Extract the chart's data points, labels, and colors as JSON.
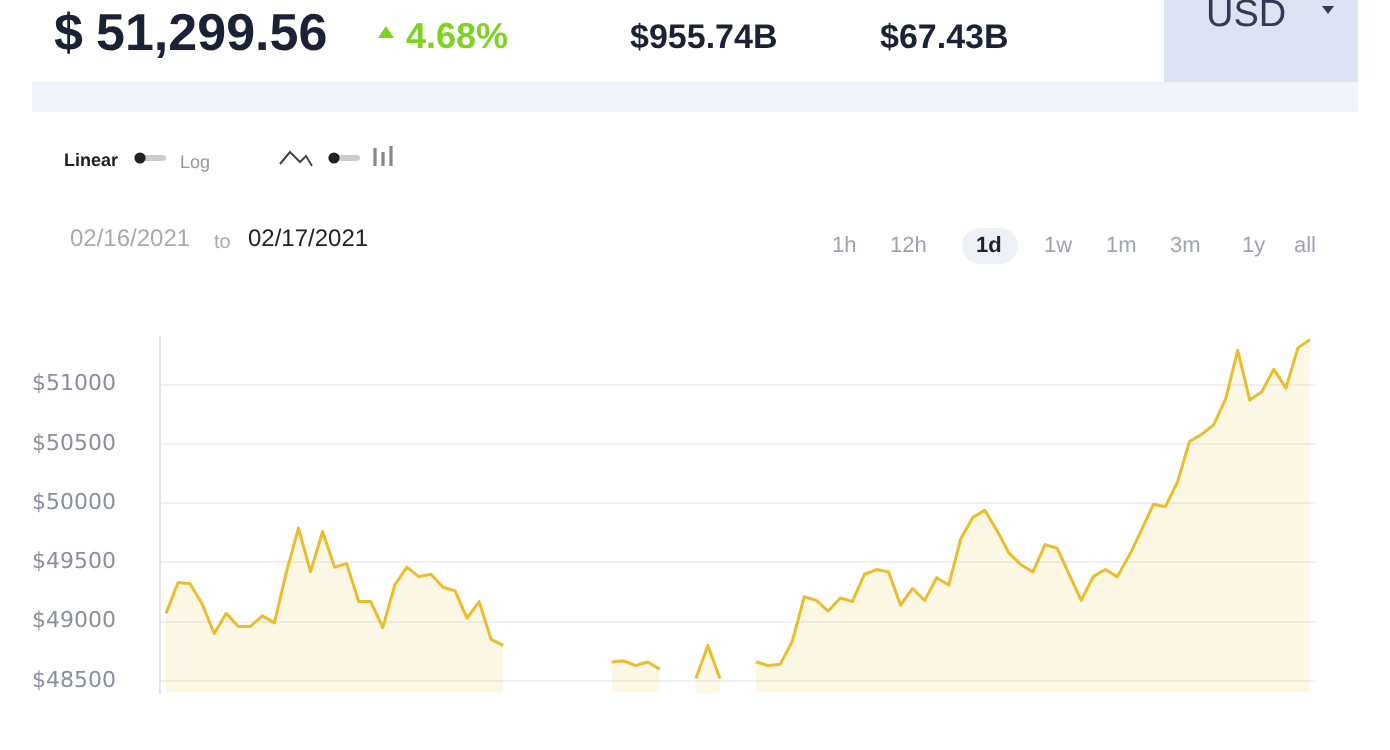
{
  "chart_data": {
    "type": "area",
    "color": "#ebbd2c",
    "marker": "none",
    "grid": "y",
    "tick_labels": "y",
    "legend": false,
    "annotations": [
      "$",
      "51,299.56",
      "4.68%",
      "$955.74B",
      "$67.43B",
      "USD",
      "Linear",
      "Log",
      "02/16/2021",
      "to",
      "02/17/2021",
      "1h",
      "12h",
      "1d",
      "1w",
      "1m",
      "3m",
      "1y",
      "all"
    ],
    "categories": [
      null,
      null,
      null,
      null,
      null,
      null,
      null,
      null,
      null,
      null,
      null,
      null,
      null,
      null,
      null,
      null,
      null,
      null,
      null,
      null,
      null,
      null,
      null,
      null,
      null,
      null,
      null,
      null,
      null,
      null,
      null,
      null,
      null,
      null,
      null,
      null,
      null,
      null,
      null,
      null,
      null,
      null,
      null,
      null,
      null,
      null,
      null,
      null,
      null,
      null,
      null,
      null,
      null,
      null,
      null,
      null,
      null,
      null,
      null,
      null,
      null,
      null,
      null,
      null,
      null,
      null,
      null,
      null,
      null,
      null,
      null,
      null,
      null,
      null,
      null,
      null,
      null,
      null,
      null,
      null,
      null,
      null,
      null,
      null,
      null,
      null,
      null,
      null,
      null,
      null,
      null,
      null,
      null,
      null,
      null,
      null
    ],
    "values": [
      49070,
      49330,
      49320,
      49150,
      48900,
      49070,
      48960,
      48960,
      49050,
      48990,
      49420,
      49790,
      49420,
      49760,
      49460,
      49490,
      49170,
      49170,
      48950,
      49310,
      49460,
      49380,
      49400,
      49290,
      49260,
      49030,
      49170,
      48850,
      48800,
      null,
      null,
      null,
      null,
      null,
      null,
      null,
      null,
      48660,
      48670,
      48630,
      48660,
      48600,
      null,
      null,
      48520,
      48800,
      48520,
      null,
      null,
      48660,
      48630,
      48640,
      48830,
      49210,
      49180,
      49090,
      49200,
      49170,
      49400,
      49440,
      49420,
      49140,
      49280,
      49180,
      49370,
      49310,
      49700,
      49880,
      49940,
      49770,
      49580,
      49480,
      49420,
      49650,
      49620,
      49400,
      49180,
      49380,
      49440,
      49380,
      49560,
      49770,
      49990,
      49970,
      50180,
      50520,
      50580,
      50660,
      50880,
      51290,
      50870,
      50940,
      51130,
      50970,
      51310,
      51380
    ],
    "ylim": [
      48400,
      51400
    ],
    "yticks": [
      {
        "value": 48500,
        "label": "$48500"
      },
      {
        "value": 49000,
        "label": "$49000"
      },
      {
        "value": 49500,
        "label": "$49500"
      },
      {
        "value": 50000,
        "label": "$50000"
      },
      {
        "value": 50500,
        "label": "$50500"
      },
      {
        "value": 51000,
        "label": "$51000"
      }
    ]
  }
}
